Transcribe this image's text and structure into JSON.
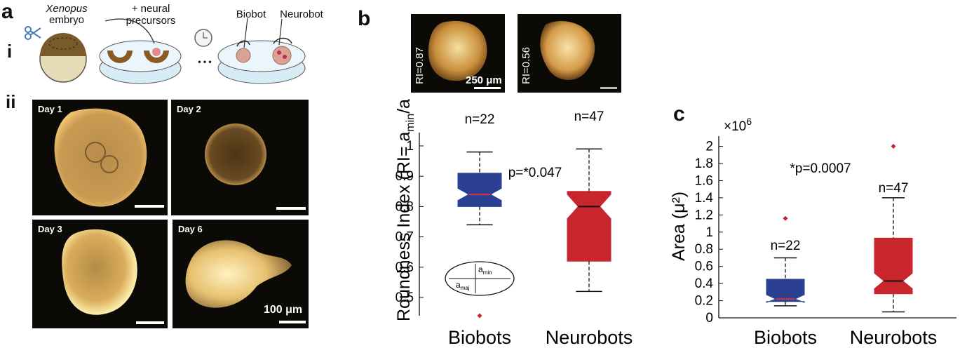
{
  "panels": {
    "a": "a",
    "b": "b",
    "c": "c",
    "i": "i",
    "ii": "ii"
  },
  "schematic": {
    "embryo_title": "Xenopus",
    "embryo_sub": "embryo",
    "precursor_label": "+ neural\nprecursors",
    "ellipsis": "• • •",
    "biobot_label": "Biobot",
    "neurobot_label": "Neurobot"
  },
  "micrographs": {
    "day1": "Day 1",
    "day2": "Day 2",
    "day3": "Day 3",
    "day6": "Day 6",
    "scale_label": "100 μm"
  },
  "insets": {
    "ri1": "RI=0.87",
    "ri2": "RI=0.56",
    "scale_label": "250 μm"
  },
  "ellipse_inset": {
    "a_min": "a",
    "a_min_sub": "min",
    "a_maj": "a",
    "a_maj_sub": "maj"
  },
  "colors": {
    "biobots": "#2b3f93",
    "neurobots": "#c8262c",
    "median_biobots": "#e0303a",
    "median_neurobots": "#111111"
  },
  "chart_data": [
    {
      "type": "boxplot",
      "panel": "b",
      "ylabel": "Roundness Index (RI= a_min/a_maj)",
      "ylim": [
        0.44,
        1.03
      ],
      "yticks": [
        0.5,
        0.6,
        0.7,
        0.8,
        0.9,
        1
      ],
      "ytick_labels": [
        "0.5",
        "0.6",
        "0.7",
        "0.8",
        "0.9",
        "1"
      ],
      "annotation": "p=*0.047",
      "series": [
        {
          "category": "Biobots",
          "n_label": "n=22",
          "whisker_low": 0.74,
          "q1": 0.8,
          "median": 0.84,
          "q3": 0.91,
          "whisker_high": 0.98,
          "notch_low": 0.82,
          "notch_high": 0.86,
          "outliers": [
            0.44
          ]
        },
        {
          "category": "Neurobots",
          "n_label": "n=47",
          "whisker_low": 0.52,
          "q1": 0.62,
          "median": 0.8,
          "q3": 0.85,
          "whisker_high": 0.99,
          "notch_low": 0.76,
          "notch_high": 0.84,
          "outliers": []
        }
      ]
    },
    {
      "type": "boxplot",
      "panel": "c",
      "ylabel": "Area (μ²)",
      "multiplier": "×10^6",
      "multiplier_base": "×10",
      "multiplier_exp": "6",
      "ylim": [
        0,
        2.07
      ],
      "yticks": [
        0,
        0.2,
        0.4,
        0.6,
        0.8,
        1,
        1.2,
        1.4,
        1.6,
        1.8,
        2
      ],
      "ytick_labels": [
        "0",
        "0.2",
        "0.4",
        "0.6",
        "0.8",
        "1",
        "1.2",
        "1.4",
        "1.6",
        "1.8",
        "2"
      ],
      "annotation": "*p=0.0007",
      "series": [
        {
          "category": "Biobots",
          "n_label": "n=22",
          "whisker_low": 0.14,
          "q1": 0.19,
          "median": 0.22,
          "q3": 0.45,
          "whisker_high": 0.7,
          "notch_low": 0.18,
          "notch_high": 0.27,
          "outliers": [
            1.16
          ]
        },
        {
          "category": "Neurobots",
          "n_label": "n=47",
          "whisker_low": 0.07,
          "q1": 0.28,
          "median": 0.43,
          "q3": 0.93,
          "whisker_high": 1.4,
          "notch_low": 0.34,
          "notch_high": 0.52,
          "outliers": [
            2.0
          ]
        }
      ]
    }
  ]
}
